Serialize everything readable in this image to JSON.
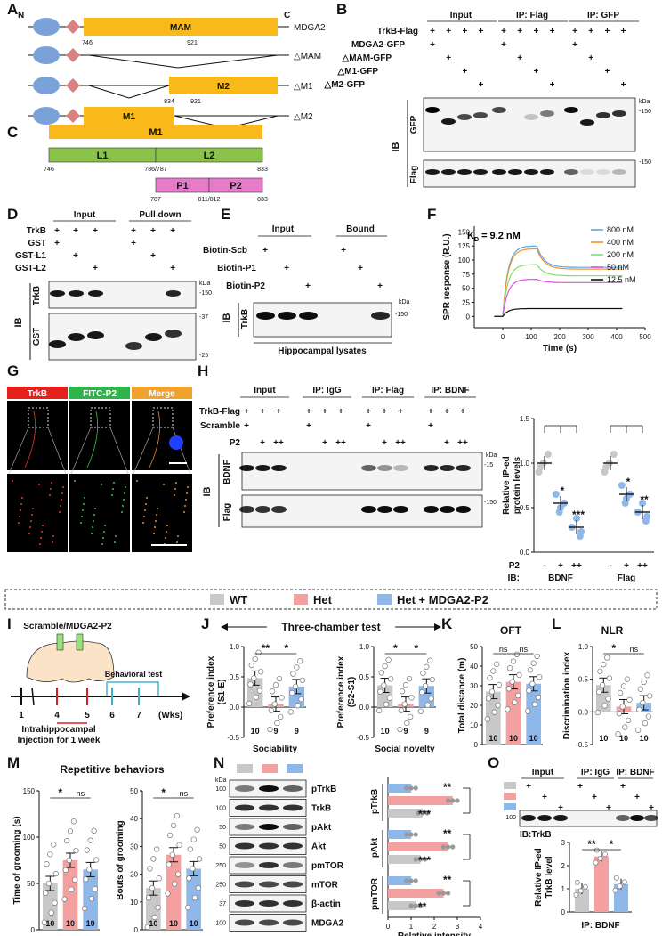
{
  "panels": {
    "A": {
      "letter": "A",
      "n_label": "N",
      "c_label": "C",
      "rows": [
        {
          "name": "MDGA2",
          "box": "MAM",
          "ticks": [
            "746",
            "921"
          ]
        },
        {
          "name": "△MAM",
          "box": "",
          "ticks": []
        },
        {
          "name": "△M1",
          "box": "M2",
          "ticks": [
            "834",
            "921"
          ]
        },
        {
          "name": "△M2",
          "box": "M1",
          "ticks": [
            "746",
            "833"
          ]
        }
      ]
    },
    "B": {
      "letter": "B",
      "groups": [
        "Input",
        "IP: Flag",
        "IP: GFP"
      ],
      "rows": [
        "TrkB-Flag",
        "MDGA2-GFP",
        "△MAM-GFP",
        "△M1-GFP",
        "△M2-GFP"
      ],
      "plus": "+",
      "ib": "IB",
      "kda": "kDa",
      "blots": [
        {
          "label": "GFP",
          "marker": "150"
        },
        {
          "label": "Flag",
          "marker": "150"
        }
      ]
    },
    "C": {
      "letter": "C",
      "top": "M1",
      "l1": "L1",
      "l2": "L2",
      "p1": "P1",
      "p2": "P2",
      "ticks1": [
        "746",
        "786/787",
        "833"
      ],
      "ticks2": [
        "787",
        "811/812",
        "833"
      ]
    },
    "D": {
      "letter": "D",
      "groups": [
        "Input",
        "Pull down"
      ],
      "rows": [
        "TrkB",
        "GST",
        "GST-L1",
        "GST-L2"
      ],
      "ib": "IB",
      "kda": "kDa",
      "blots": [
        {
          "label": "TrkB",
          "markers": [
            "150"
          ]
        },
        {
          "label": "GST",
          "markers": [
            "37",
            "25"
          ]
        }
      ]
    },
    "E": {
      "letter": "E",
      "groups": [
        "Input",
        "Bound"
      ],
      "rows": [
        "Biotin-Scb",
        "Biotin-P1",
        "Biotin-P2"
      ],
      "ib": "IB",
      "blot": "TrkB",
      "kda": "kDa",
      "marker": "150",
      "footer": "Hippocampal lysates"
    },
    "F": {
      "letter": "F",
      "kd_prefix": "K",
      "kd_sub": "D",
      "kd_value": "= 9.2 nM"
    },
    "G": {
      "letter": "G",
      "tabs": [
        {
          "label": "TrkB",
          "color": "#e4201c"
        },
        {
          "label": "FITC-P2",
          "color": "#2fb34a"
        },
        {
          "label": "Merge",
          "color": "#f0a22e"
        }
      ]
    },
    "H": {
      "letter": "H",
      "groups": [
        "Input",
        "IP: IgG",
        "IP: Flag",
        "IP: BDNF"
      ],
      "rows": [
        "TrkB-Flag",
        "Scramble",
        "P2"
      ],
      "ib": "IB",
      "kda": "kDa",
      "blots": [
        {
          "label": "BDNF",
          "marker": "15"
        },
        {
          "label": "Flag",
          "marker": "150"
        }
      ],
      "sig": [
        "*",
        "***",
        "*",
        "**"
      ],
      "bottom_rows": [
        "P2",
        "IB:"
      ],
      "bottom_groups": [
        "BDNF",
        "Flag"
      ],
      "p2_levels": [
        "-",
        "+",
        "++"
      ]
    },
    "legend": {
      "items": [
        {
          "label": "WT",
          "color": "#c8c8c8"
        },
        {
          "label": "Het",
          "color": "#f2a0a0"
        },
        {
          "label": "Het + MDGA2-P2",
          "color": "#8fb8ea"
        }
      ]
    },
    "I": {
      "letter": "I",
      "title": "Scramble/MDGA2-P2",
      "behav": "Behavioral test",
      "ticks": [
        "1",
        "4",
        "5",
        "6",
        "7"
      ],
      "unit": "(Wks)",
      "inj1": "Intrahippocampal",
      "inj2": "Injection for 1 week"
    },
    "J": {
      "letter": "J",
      "header": "Three-chamber test",
      "sig1": [
        "**",
        "*"
      ],
      "sig2": [
        "*",
        "*"
      ]
    },
    "K": {
      "letter": "K",
      "sig": [
        "ns",
        "ns"
      ]
    },
    "L": {
      "letter": "L",
      "sig": [
        "*",
        "ns"
      ]
    },
    "M": {
      "letter": "M",
      "sig1": [
        "*",
        "ns"
      ],
      "sig2": [
        "*",
        "ns"
      ]
    },
    "N": {
      "letter": "N",
      "kda": "kDa",
      "blots": [
        {
          "label": "pTrkB",
          "marker": "100"
        },
        {
          "label": "TrkB",
          "marker": "100"
        },
        {
          "label": "pAkt",
          "marker": "50"
        },
        {
          "label": "Akt",
          "marker": "50"
        },
        {
          "label": "pmTOR",
          "marker": "250"
        },
        {
          "label": "mTOR",
          "marker": "250"
        },
        {
          "label": "β-actin",
          "marker": "37"
        },
        {
          "label": "MDGA2",
          "marker": "100"
        }
      ],
      "sig": [
        "**",
        "***",
        "**",
        "***",
        "**",
        "**"
      ]
    },
    "O": {
      "letter": "O",
      "groups": [
        "Input",
        "IP: IgG",
        "IP: BDNF"
      ],
      "plus": "+",
      "marker": "100",
      "ib": "IB:TrkB",
      "sig": [
        "**",
        "*"
      ],
      "footer": "IP: BDNF"
    }
  },
  "colors": {
    "wt": "#c8c8c8",
    "het": "#f2a0a0",
    "p2": "#8fb8ea",
    "mam": "#f9b91a",
    "linker": "#8bc34a",
    "pep": "#e77bc9"
  },
  "chart_data": [
    {
      "type": "line",
      "panel": "F",
      "xlabel": "Time (s)",
      "ylabel": "SPR response (R.U.)",
      "xlim": [
        -100,
        500
      ],
      "ylim": [
        -20,
        160
      ],
      "xticks": [
        0,
        100,
        200,
        300,
        400,
        500
      ],
      "yticks": [
        0,
        25,
        50,
        75,
        100,
        125,
        150
      ],
      "series": [
        {
          "name": "800 nM",
          "color": "#5aa8e0",
          "plateau": 125,
          "end": 87
        },
        {
          "name": "400 nM",
          "color": "#f2932a",
          "plateau": 120,
          "end": 84
        },
        {
          "name": "200 nM",
          "color": "#7fe06a",
          "plateau": 92,
          "end": 72
        },
        {
          "name": "50 nM",
          "color": "#e04ee0",
          "plateau": 66,
          "end": 60
        },
        {
          "name": "12.5 nM",
          "color": "#111111",
          "plateau": 14,
          "end": 14
        }
      ]
    },
    {
      "type": "scatter",
      "panel": "H",
      "ylabel": "Relative IP-ed protein levels",
      "ylim": [
        0,
        1.5
      ],
      "yticks": [
        "0.0",
        "0.5",
        "1.0",
        "1.5"
      ],
      "groups": [
        {
          "name": "BDNF",
          "means": [
            1.0,
            0.55,
            0.28
          ]
        },
        {
          "name": "Flag",
          "means": [
            1.0,
            0.65,
            0.45
          ]
        }
      ]
    },
    {
      "type": "bar",
      "panel": "J1",
      "ylabel": "Preference index (S1-E)",
      "xlabel": "Sociability",
      "ylim": [
        -0.5,
        1.0
      ],
      "yticks": [
        "-0.5",
        "0.0",
        "0.5",
        "1.0"
      ],
      "values": [
        0.48,
        0.05,
        0.34
      ],
      "n": [
        "10",
        "9",
        "9"
      ]
    },
    {
      "type": "bar",
      "panel": "J2",
      "ylabel": "Preference index (S2-S1)",
      "xlabel": "Social novelty",
      "ylim": [
        -0.5,
        1.0
      ],
      "yticks": [
        "-0.5",
        "0.0",
        "0.5",
        "1.0"
      ],
      "values": [
        0.36,
        0.05,
        0.35
      ],
      "n": [
        "10",
        "9",
        "9"
      ]
    },
    {
      "type": "bar",
      "panel": "K",
      "title": "OFT",
      "ylabel": "Total distance (m)",
      "ylim": [
        0,
        50
      ],
      "yticks": [
        "0",
        "10",
        "20",
        "30",
        "40",
        "50"
      ],
      "values": [
        27,
        32,
        31
      ],
      "n": [
        "10",
        "10",
        "10"
      ]
    },
    {
      "type": "bar",
      "panel": "L",
      "title": "NLR",
      "ylabel": "Discrimination index",
      "ylim": [
        -0.5,
        1.0
      ],
      "yticks": [
        "-0.5",
        "0.0",
        "0.5",
        "1.0"
      ],
      "values": [
        0.41,
        0.08,
        0.14
      ],
      "n": [
        "10",
        "10",
        "10"
      ]
    },
    {
      "type": "bar",
      "panel": "M1",
      "title": "Repetitive behaviors",
      "ylabel": "Time of grooming (s)",
      "ylim": [
        0,
        150
      ],
      "yticks": [
        "0",
        "50",
        "100",
        "150"
      ],
      "values": [
        50,
        75,
        65
      ],
      "n": [
        "10",
        "10",
        "10"
      ]
    },
    {
      "type": "bar",
      "panel": "M2",
      "ylabel": "Bouts of grooming",
      "ylim": [
        0,
        50
      ],
      "yticks": [
        "0",
        "10",
        "20",
        "30",
        "40",
        "50"
      ],
      "values": [
        15,
        27,
        22
      ],
      "n": [
        "10",
        "10",
        "10"
      ]
    },
    {
      "type": "bar",
      "panel": "N",
      "orientation": "horizontal",
      "xlabel": "Relative intensity",
      "xlim": [
        0,
        4
      ],
      "xticks": [
        "0",
        "1",
        "2",
        "3",
        "4"
      ],
      "groups": [
        {
          "name": "pTrkB",
          "values": [
            1.5,
            2.8,
            1.0
          ]
        },
        {
          "name": "pAkt",
          "values": [
            1.4,
            2.6,
            1.0
          ]
        },
        {
          "name": "pmTOR",
          "values": [
            1.2,
            2.4,
            1.0
          ]
        }
      ]
    },
    {
      "type": "bar",
      "panel": "O",
      "ylabel": "Relative IP-ed TrkB level",
      "ylim": [
        0,
        3
      ],
      "yticks": [
        "0",
        "1",
        "2",
        "3"
      ],
      "values": [
        1.0,
        2.4,
        1.2
      ]
    }
  ]
}
